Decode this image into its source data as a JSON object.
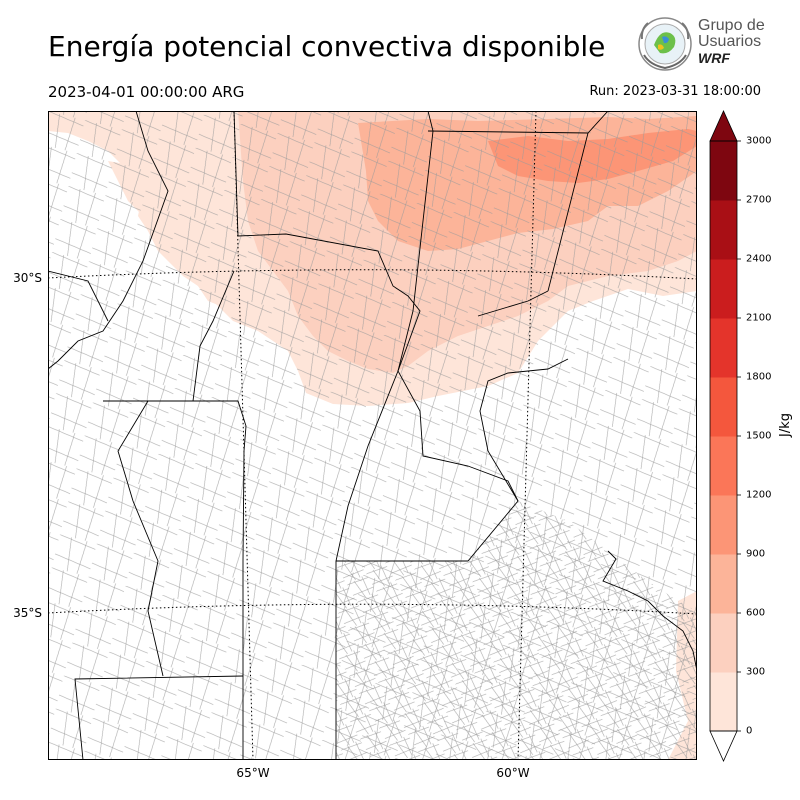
{
  "header": {
    "title": "Energía potencial convectiva disponible",
    "valid_time": "2023-04-01 00:00:00 ARG",
    "run_time": "Run: 2023-03-31 18:00:00"
  },
  "logo": {
    "line1": "Grupo de",
    "line2": "Usuarios",
    "line3": "WRF"
  },
  "map": {
    "lat_labels": [
      "30°S",
      "35°S"
    ],
    "lon_labels": [
      "65°W",
      "60°W"
    ],
    "gridline_style": "dotted"
  },
  "colorbar": {
    "unit": "J/kg",
    "ticks": [
      "0",
      "300",
      "600",
      "900",
      "1200",
      "1500",
      "1800",
      "2100",
      "2400",
      "2700",
      "3000"
    ],
    "colors": [
      "#fee5d9",
      "#fcd0bf",
      "#fcb499",
      "#fc9576",
      "#fb7658",
      "#f4573d",
      "#e4342b",
      "#cb1d1e",
      "#a90f15",
      "#7e0610"
    ],
    "extend": "both"
  },
  "chart_data": {
    "type": "heatmap",
    "title": "Energía potencial convectiva disponible",
    "variable_unit": "J/kg",
    "levels": [
      0,
      300,
      600,
      900,
      1200,
      1500,
      1800,
      2100,
      2400,
      2700,
      3000
    ],
    "max_observed_level": 900,
    "region": "Centro-norte de Argentina",
    "xlabel": "",
    "ylabel": ""
  }
}
